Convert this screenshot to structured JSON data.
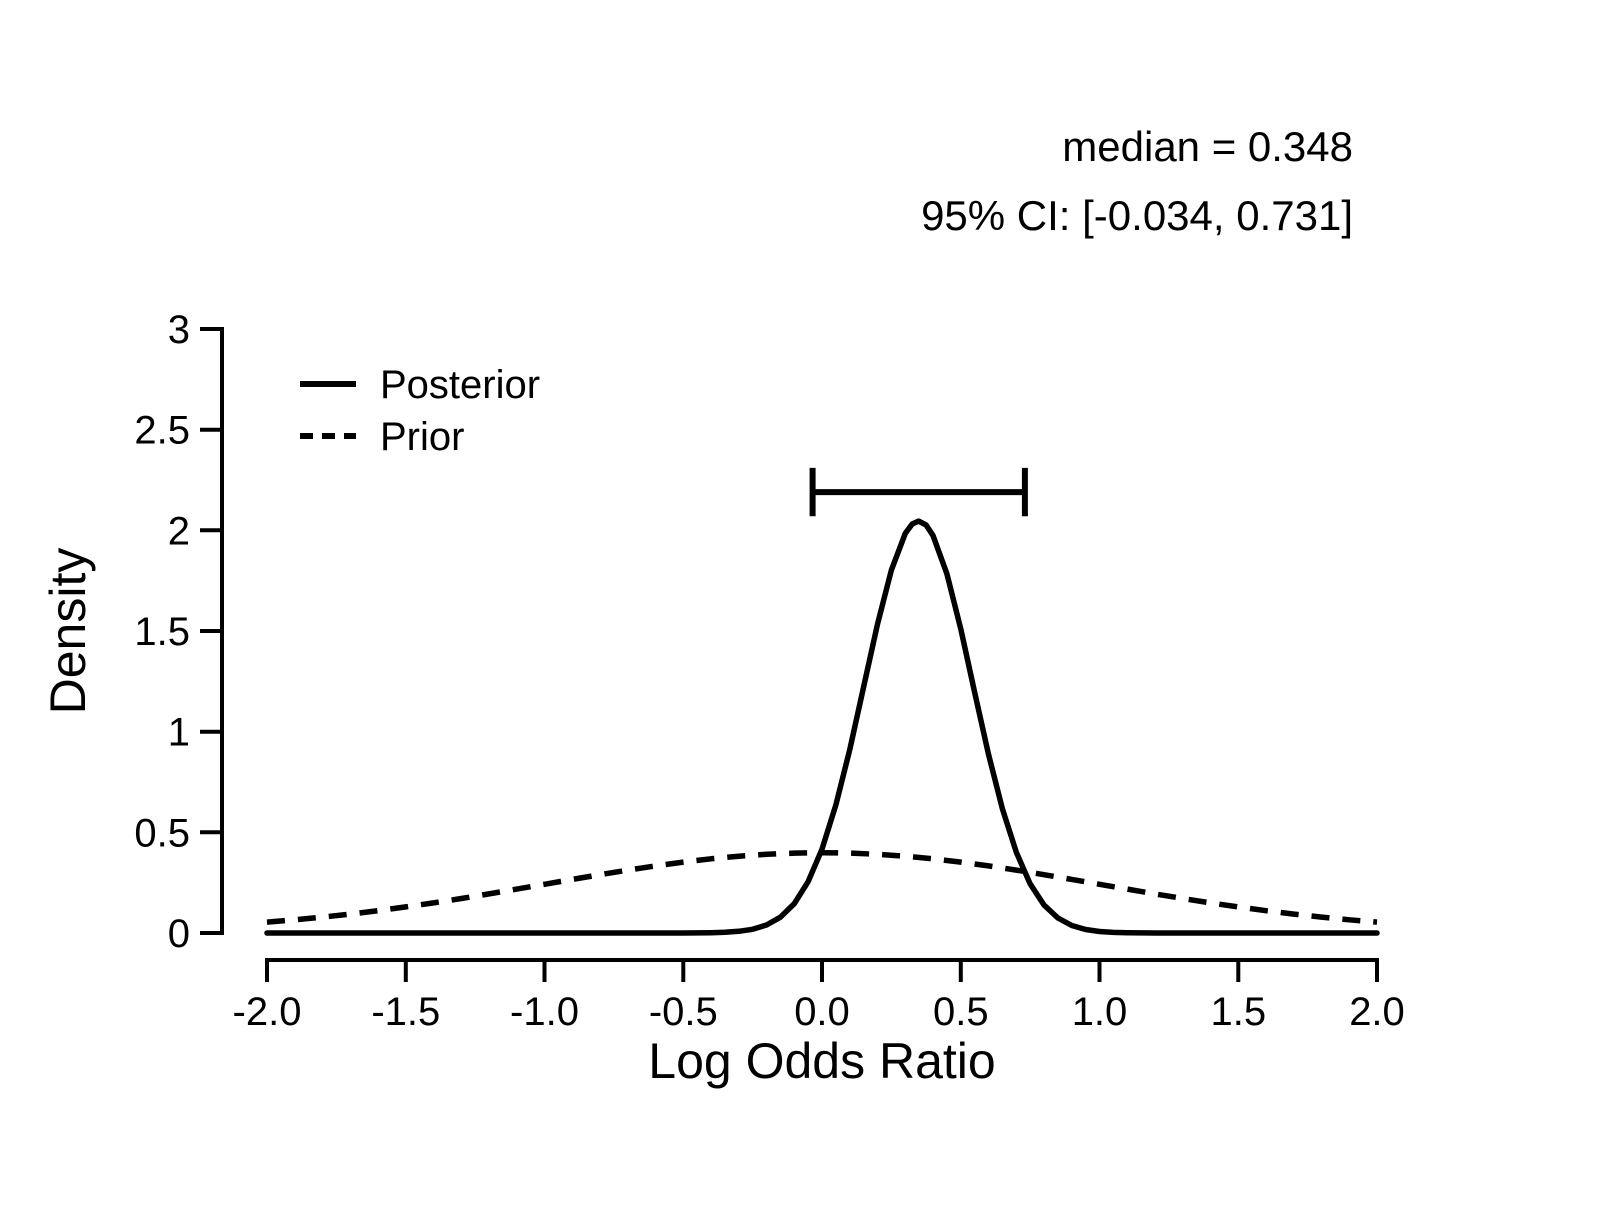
{
  "annotations": {
    "median": "median = 0.348",
    "ci": "95% CI: [-0.034, 0.731]"
  },
  "chart_data": {
    "type": "line",
    "title": "",
    "xlabel": "Log Odds Ratio",
    "ylabel": "Density",
    "xlim": [
      -2,
      2
    ],
    "ylim": [
      0,
      3
    ],
    "grid": false,
    "line_color": "#000000",
    "background_color": "#ffffff",
    "median": 0.348,
    "ci_95": [
      -0.034,
      0.731
    ],
    "ci_bar": {
      "y": 2.19,
      "from": -0.034,
      "to": 0.731,
      "cap_half": 0.12
    },
    "x_ticks": {
      "values": [
        -2,
        -1.5,
        -1,
        -0.5,
        0,
        0.5,
        1,
        1.5,
        2
      ],
      "labels": [
        "-2.0",
        "-1.5",
        "-1.0",
        "-0.5",
        "0.0",
        "0.5",
        "1.0",
        "1.5",
        "2.0"
      ]
    },
    "y_ticks": {
      "values": [
        0,
        0.5,
        1,
        1.5,
        2,
        2.5,
        3
      ],
      "labels": [
        "0",
        "0.5",
        "1",
        "1.5",
        "2",
        "2.5",
        "3"
      ]
    },
    "legend": {
      "position": "top-left",
      "entries": [
        {
          "label": "Posterior",
          "style": "solid"
        },
        {
          "label": "Prior",
          "style": "dashed"
        }
      ]
    },
    "series": [
      {
        "name": "Posterior",
        "style": "solid",
        "points": [
          [
            -2,
            0
          ],
          [
            -1.5,
            0
          ],
          [
            -1,
            0
          ],
          [
            -0.8,
            0
          ],
          [
            -0.7,
            0.0001
          ],
          [
            -0.6,
            0.0001
          ],
          [
            -0.5,
            0.0002
          ],
          [
            -0.45,
            0.0005
          ],
          [
            -0.4,
            0.0013
          ],
          [
            -0.35,
            0.0034
          ],
          [
            -0.3,
            0.0082
          ],
          [
            -0.25,
            0.0186
          ],
          [
            -0.2,
            0.0395
          ],
          [
            -0.15,
            0.0783
          ],
          [
            -0.1,
            0.1462
          ],
          [
            -0.05,
            0.2548
          ],
          [
            0,
            0.4162
          ],
          [
            0.05,
            0.6366
          ],
          [
            0.1,
            0.9114
          ],
          [
            0.15,
            1.2218
          ],
          [
            0.2,
            1.5339
          ],
          [
            0.25,
            1.803
          ],
          [
            0.3,
            1.9848
          ],
          [
            0.325,
            2.0317
          ],
          [
            0.348,
            2.0459
          ],
          [
            0.375,
            2.0264
          ],
          [
            0.4,
            1.9744
          ],
          [
            0.45,
            1.7843
          ],
          [
            0.5,
            1.5099
          ],
          [
            0.55,
            1.1964
          ],
          [
            0.6,
            0.8876
          ],
          [
            0.65,
            0.6167
          ],
          [
            0.7,
            0.4012
          ],
          [
            0.75,
            0.2443
          ],
          [
            0.8,
            0.1393
          ],
          [
            0.85,
            0.0744
          ],
          [
            0.9,
            0.0373
          ],
          [
            0.95,
            0.0174
          ],
          [
            1,
            0.0076
          ],
          [
            1.05,
            0.0031
          ],
          [
            1.1,
            0.0012
          ],
          [
            1.15,
            0.0004
          ],
          [
            1.2,
            0.0002
          ],
          [
            1.3,
            0
          ],
          [
            1.5,
            0
          ],
          [
            2,
            0
          ]
        ]
      },
      {
        "name": "Prior",
        "style": "dashed",
        "points": [
          [
            -2,
            0.054
          ],
          [
            -1.9,
            0.0656
          ],
          [
            -1.8,
            0.079
          ],
          [
            -1.7,
            0.094
          ],
          [
            -1.6,
            0.1109
          ],
          [
            -1.5,
            0.1295
          ],
          [
            -1.4,
            0.1497
          ],
          [
            -1.3,
            0.1714
          ],
          [
            -1.2,
            0.1942
          ],
          [
            -1.1,
            0.2179
          ],
          [
            -1,
            0.242
          ],
          [
            -0.9,
            0.2661
          ],
          [
            -0.8,
            0.2897
          ],
          [
            -0.7,
            0.3123
          ],
          [
            -0.6,
            0.3332
          ],
          [
            -0.5,
            0.3521
          ],
          [
            -0.4,
            0.3683
          ],
          [
            -0.3,
            0.3814
          ],
          [
            -0.2,
            0.391
          ],
          [
            -0.1,
            0.397
          ],
          [
            0,
            0.3989
          ],
          [
            0.1,
            0.397
          ],
          [
            0.2,
            0.391
          ],
          [
            0.3,
            0.3814
          ],
          [
            0.4,
            0.3683
          ],
          [
            0.5,
            0.3521
          ],
          [
            0.6,
            0.3332
          ],
          [
            0.7,
            0.3123
          ],
          [
            0.8,
            0.2897
          ],
          [
            0.9,
            0.2661
          ],
          [
            1,
            0.242
          ],
          [
            1.1,
            0.2179
          ],
          [
            1.2,
            0.1942
          ],
          [
            1.3,
            0.1714
          ],
          [
            1.4,
            0.1497
          ],
          [
            1.5,
            0.1295
          ],
          [
            1.6,
            0.1109
          ],
          [
            1.7,
            0.094
          ],
          [
            1.8,
            0.079
          ],
          [
            1.9,
            0.0656
          ],
          [
            2,
            0.054
          ]
        ]
      }
    ]
  }
}
